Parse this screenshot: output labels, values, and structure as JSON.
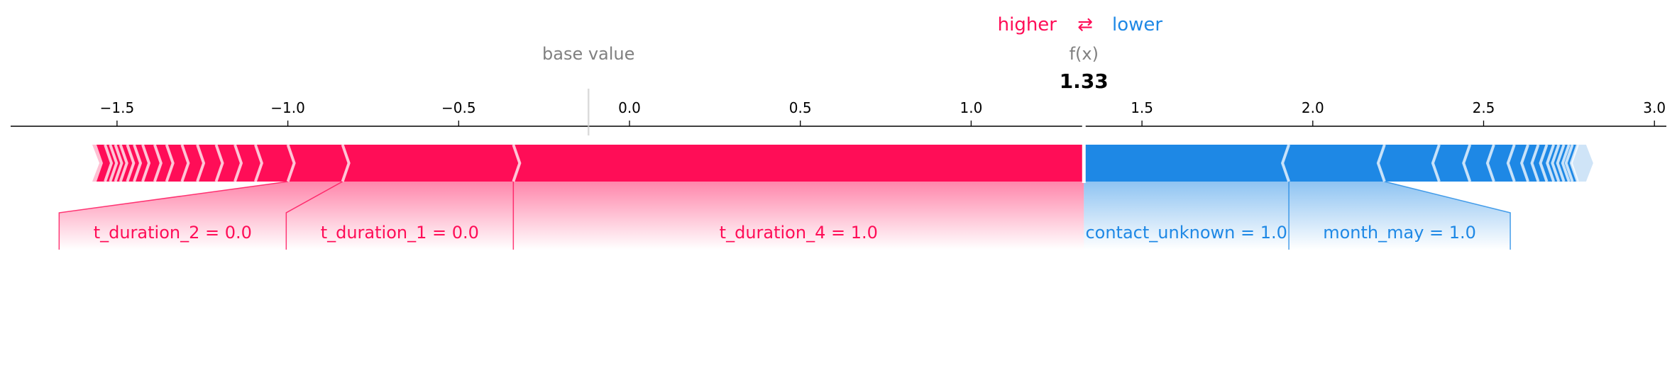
{
  "legend": {
    "higher_label": "higher",
    "arrows": "⇄",
    "lower_label": "lower"
  },
  "header": {
    "base_value_label": "base value",
    "fx_label": "f(x)",
    "fx_value": "1.33"
  },
  "chart_data": {
    "type": "force",
    "base_value": -0.12,
    "output_value": 1.33,
    "xlim": [
      -1.75,
      3.0
    ],
    "x_ticks": [
      -1.5,
      -1.0,
      -0.5,
      0.0,
      0.5,
      1.0,
      1.5,
      2.0,
      2.5,
      3.0
    ],
    "x_tick_labels": [
      "−1.5",
      "−1.0",
      "−0.5",
      "0.0",
      "0.5",
      "1.0",
      "1.5",
      "2.0",
      "2.5",
      "3.0"
    ],
    "colors": {
      "positive": "#ff0d57",
      "negative": "#1e88e5",
      "gray": "#808080",
      "text": "#000000"
    },
    "positive_boundaries": [
      -1.56,
      -1.535,
      -1.52,
      -1.505,
      -1.49,
      -1.47,
      -1.45,
      -1.425,
      -1.39,
      -1.355,
      -1.31,
      -1.265,
      -1.21,
      -1.155,
      -1.095,
      -1.0,
      -0.84,
      -0.34
    ],
    "negative_boundaries": [
      1.33,
      1.93,
      2.21,
      2.37,
      2.46,
      2.53,
      2.59,
      2.63,
      2.66,
      2.685,
      2.705,
      2.72,
      2.735,
      2.75,
      2.76,
      2.775
    ],
    "labeled_features": [
      {
        "name": "t_duration_2 = 0.0",
        "effect": "positive",
        "from": -1.0,
        "to": -0.84
      },
      {
        "name": "t_duration_1 = 0.0",
        "effect": "positive",
        "from": -0.84,
        "to": -0.34
      },
      {
        "name": "t_duration_4 = 1.0",
        "effect": "positive",
        "from": -0.34,
        "to": 1.33
      },
      {
        "name": "contact_unknown = 1.0",
        "effect": "negative",
        "from": 1.33,
        "to": 1.93
      },
      {
        "name": "month_may = 1.0",
        "effect": "negative",
        "from": 1.93,
        "to": 2.21
      }
    ]
  }
}
